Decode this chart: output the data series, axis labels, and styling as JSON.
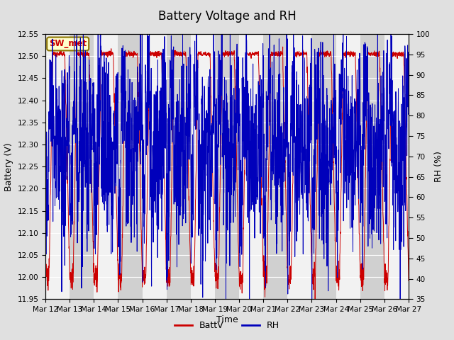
{
  "title": "Battery Voltage and RH",
  "xlabel": "Time",
  "ylabel_left": "Battery (V)",
  "ylabel_right": "RH (%)",
  "station_label": "SW_met",
  "ylim_left": [
    11.95,
    12.55
  ],
  "ylim_right": [
    35,
    100
  ],
  "yticks_left": [
    11.95,
    12.0,
    12.05,
    12.1,
    12.15,
    12.2,
    12.25,
    12.3,
    12.35,
    12.4,
    12.45,
    12.5,
    12.55
  ],
  "yticks_right": [
    35,
    40,
    45,
    50,
    55,
    60,
    65,
    70,
    75,
    80,
    85,
    90,
    95,
    100
  ],
  "xtick_labels": [
    "Mar 12",
    "Mar 13",
    "Mar 14",
    "Mar 15",
    "Mar 16",
    "Mar 17",
    "Mar 18",
    "Mar 19",
    "Mar 20",
    "Mar 21",
    "Mar 22",
    "Mar 23",
    "Mar 24",
    "Mar 25",
    "Mar 26",
    "Mar 27"
  ],
  "batt_color": "#cc0000",
  "rh_color": "#0000bb",
  "legend_labels": [
    "BattV",
    "RH"
  ],
  "bg_color": "#e0e0e0",
  "plot_bg_color": "#f2f2f2",
  "alt_band_color": "#d0d0d0",
  "grid_color": "#ffffff",
  "title_fontsize": 12,
  "label_fontsize": 9,
  "tick_fontsize": 7.5,
  "legend_fontsize": 9,
  "n_days": 15,
  "n_points": 2160
}
